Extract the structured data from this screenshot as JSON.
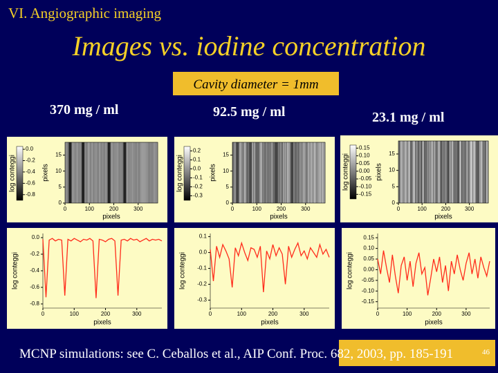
{
  "slide": {
    "section": "VI. Angiographic imaging",
    "title": "Images vs. iodine concentration",
    "subtitle": "Cavity diameter = 1mm",
    "footer": "MCNP simulations: see C. Ceballos et al., AIP Conf. Proc. 682, 2003, pp. 185-191",
    "page_number": "46",
    "columns": [
      {
        "concentration": "370 mg / ml",
        "image": {
          "colorbar_label": "log conteggi",
          "clim": [
            -0.9,
            0.05
          ],
          "cticks": [
            {
              "value": 0,
              "label": "0.0"
            },
            -0.2,
            -0.4,
            -0.6,
            -0.8
          ],
          "xlabel": "pixels",
          "ylabel": "pixels",
          "xlim": [
            0,
            380
          ],
          "xticks": [
            0,
            100,
            200,
            300
          ],
          "ylim": [
            0,
            19
          ],
          "yticks": [
            0,
            5,
            10,
            15
          ]
        },
        "profile": {
          "type": "line",
          "color": "#ff2a1a",
          "xlabel": "pixels",
          "ylabel": "log conteggi",
          "xlim": [
            0,
            380
          ],
          "xticks": [
            0,
            100,
            200,
            300
          ],
          "ylim": [
            -0.85,
            0.05
          ],
          "yticks": [
            {
              "value": 0,
              "label": "0.0"
            },
            -0.2,
            -0.4,
            -0.6,
            -0.8
          ],
          "x": [
            0,
            10,
            20,
            30,
            40,
            50,
            60,
            70,
            80,
            90,
            100,
            110,
            120,
            130,
            140,
            150,
            160,
            170,
            180,
            190,
            200,
            210,
            220,
            230,
            240,
            250,
            260,
            270,
            280,
            290,
            300,
            310,
            320,
            330,
            340,
            350,
            360,
            370,
            380
          ],
          "values": [
            -0.02,
            -0.72,
            -0.03,
            -0.01,
            -0.04,
            -0.02,
            -0.03,
            -0.7,
            -0.02,
            -0.04,
            -0.01,
            -0.03,
            -0.05,
            -0.02,
            -0.03,
            -0.01,
            -0.04,
            -0.73,
            -0.02,
            -0.03,
            -0.05,
            -0.02,
            -0.01,
            -0.04,
            -0.7,
            -0.03,
            -0.02,
            -0.04,
            -0.01,
            -0.03,
            -0.02,
            -0.05,
            -0.03,
            -0.01,
            -0.04,
            -0.02,
            -0.03,
            -0.02,
            -0.04
          ]
        }
      },
      {
        "concentration": "92.5 mg / ml",
        "image": {
          "colorbar_label": "log conteggi",
          "clim": [
            -0.35,
            0.25
          ],
          "cticks": [
            0.2,
            0.1,
            {
              "value": 0,
              "label": "0.0"
            },
            -0.1,
            -0.2,
            -0.3
          ],
          "xlabel": "pixels",
          "ylabel": "pixels",
          "xlim": [
            0,
            380
          ],
          "xticks": [
            0,
            100,
            200,
            300
          ],
          "ylim": [
            0,
            19
          ],
          "yticks": [
            0,
            5,
            10,
            15
          ]
        },
        "profile": {
          "type": "line",
          "color": "#ff2a1a",
          "xlabel": "pixels",
          "ylabel": "log conteggi",
          "xlim": [
            0,
            380
          ],
          "xticks": [
            0,
            100,
            200,
            300
          ],
          "ylim": [
            -0.35,
            0.12
          ],
          "yticks": [
            0.1,
            {
              "value": 0,
              "label": "0.0"
            },
            -0.1,
            -0.2,
            -0.3
          ],
          "x": [
            0,
            10,
            20,
            30,
            40,
            50,
            60,
            70,
            80,
            90,
            100,
            110,
            120,
            130,
            140,
            150,
            160,
            170,
            180,
            190,
            200,
            210,
            220,
            230,
            240,
            250,
            260,
            270,
            280,
            290,
            300,
            310,
            320,
            330,
            340,
            350,
            360,
            370,
            380
          ],
          "values": [
            0.02,
            -0.18,
            0.04,
            -0.03,
            0.05,
            0.01,
            -0.04,
            -0.22,
            0.03,
            -0.02,
            0.06,
            0.0,
            -0.05,
            0.03,
            0.02,
            -0.03,
            0.04,
            -0.25,
            0.01,
            -0.04,
            0.05,
            -0.02,
            0.03,
            -0.01,
            -0.2,
            0.04,
            -0.03,
            0.02,
            0.06,
            -0.02,
            0.01,
            -0.04,
            0.03,
            0.0,
            -0.03,
            0.05,
            -0.01,
            0.02,
            -0.03
          ]
        }
      },
      {
        "concentration": "23.1 mg / ml",
        "image": {
          "colorbar_label": "log conteggi",
          "clim": [
            -0.18,
            0.17
          ],
          "cticks": [
            0.15,
            {
              "value": 0.1,
              "label": "0.10"
            },
            0.05,
            {
              "value": 0,
              "label": "0.00"
            },
            -0.05,
            {
              "value": -0.1,
              "label": "-0.10"
            },
            -0.15
          ],
          "xlabel": "pixels",
          "ylabel": "pixels",
          "xlim": [
            0,
            380
          ],
          "xticks": [
            0,
            100,
            200,
            300
          ],
          "ylim": [
            0,
            19
          ],
          "yticks": [
            0,
            5,
            10,
            15
          ]
        },
        "profile": {
          "type": "line",
          "color": "#ff2a1a",
          "xlabel": "pixels",
          "ylabel": "log conteggi",
          "xlim": [
            0,
            380
          ],
          "xticks": [
            0,
            100,
            200,
            300
          ],
          "ylim": [
            -0.18,
            0.17
          ],
          "yticks": [
            0.15,
            {
              "value": 0.1,
              "label": "0.10"
            },
            0.05,
            {
              "value": 0,
              "label": "0.00"
            },
            -0.05,
            {
              "value": -0.1,
              "label": "-0.10"
            },
            -0.15
          ],
          "x": [
            0,
            10,
            20,
            30,
            40,
            50,
            60,
            70,
            80,
            90,
            100,
            110,
            120,
            130,
            140,
            150,
            160,
            170,
            180,
            190,
            200,
            210,
            220,
            230,
            240,
            250,
            260,
            270,
            280,
            290,
            300,
            310,
            320,
            330,
            340,
            350,
            360,
            370,
            380
          ],
          "values": [
            0.05,
            -0.02,
            0.09,
            0.01,
            -0.06,
            0.07,
            -0.03,
            -0.11,
            0.02,
            0.06,
            -0.05,
            0.04,
            -0.08,
            0.03,
            0.08,
            -0.02,
            0.01,
            -0.12,
            -0.04,
            0.05,
            -0.01,
            0.06,
            -0.06,
            0.02,
            -0.1,
            0.04,
            -0.02,
            0.07,
            0.0,
            -0.05,
            0.03,
            0.08,
            -0.02,
            0.05,
            -0.04,
            0.06,
            0.01,
            -0.03,
            0.04
          ]
        }
      }
    ]
  }
}
